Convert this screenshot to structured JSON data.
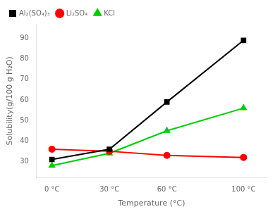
{
  "chart_data": {
    "type": "line",
    "xlabel": "Temperature (°C)",
    "ylabel": "Solubility(g/100 g H₂O)",
    "x": [
      0,
      30,
      60,
      100
    ],
    "xlim": [
      -8,
      112
    ],
    "xticks": [
      {
        "value": 0,
        "label": "0 °C"
      },
      {
        "value": 30,
        "label": "30 °C"
      },
      {
        "value": 60,
        "label": "60 °C"
      },
      {
        "value": 100,
        "label": "100 °C"
      }
    ],
    "ylim": [
      22,
      97
    ],
    "yticks": [
      30,
      40,
      50,
      60,
      70,
      80,
      90
    ],
    "grid": false,
    "legend": "upper left",
    "series": [
      {
        "name": "Al₂(SO₄)₃",
        "color": "#000000",
        "marker": "square",
        "values": [
          31,
          36,
          59,
          89
        ]
      },
      {
        "name": "Li₂SO₄",
        "color": "#ff0000",
        "marker": "circle",
        "values": [
          36,
          35,
          33,
          32
        ]
      },
      {
        "name": "KCl",
        "color": "#00cc00",
        "marker": "triangle",
        "values": [
          28,
          34,
          45,
          56
        ]
      }
    ]
  }
}
